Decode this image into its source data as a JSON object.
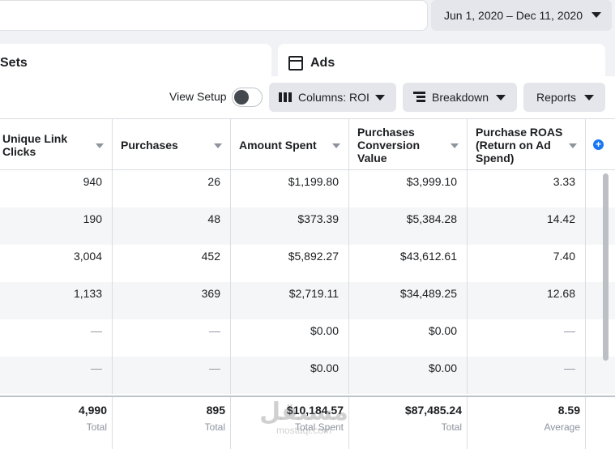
{
  "date_range": "Jun 1, 2020 – Dec 11, 2020",
  "tabs": {
    "sets": "Sets",
    "ads": "Ads"
  },
  "toolbar": {
    "view_setup": "View Setup",
    "columns": "Columns: ROI",
    "breakdown": "Breakdown",
    "reports": "Reports"
  },
  "columns": [
    "Unique Link Clicks",
    "Purchases",
    "Amount Spent",
    "Purchases Conversion Value",
    "Purchase ROAS (Return on Ad Spend)"
  ],
  "add_column_icon": "plus-circle-icon",
  "rows": [
    [
      "940",
      "26",
      "$1,199.80",
      "$3,999.10",
      "3.33"
    ],
    [
      "190",
      "48",
      "$373.39",
      "$5,384.28",
      "14.42"
    ],
    [
      "3,004",
      "452",
      "$5,892.27",
      "$43,612.61",
      "7.40"
    ],
    [
      "1,133",
      "369",
      "$2,719.11",
      "$34,489.25",
      "12.68"
    ],
    [
      "—",
      "—",
      "$0.00",
      "$0.00",
      "—"
    ],
    [
      "—",
      "—",
      "$0.00",
      "$0.00",
      "—"
    ]
  ],
  "totals": [
    {
      "value": "4,990",
      "label": "Total"
    },
    {
      "value": "895",
      "label": "Total"
    },
    {
      "value": "$10,184.57",
      "label": "Total Spent"
    },
    {
      "value": "$87,485.24",
      "label": "Total"
    },
    {
      "value": "8.59",
      "label": "Average"
    }
  ],
  "watermark": {
    "logo": "مستقل",
    "url": "mostaqi.com"
  },
  "colors": {
    "accent": "#1877f2",
    "button_bg": "#e4e6eb",
    "border": "#dadde1"
  }
}
